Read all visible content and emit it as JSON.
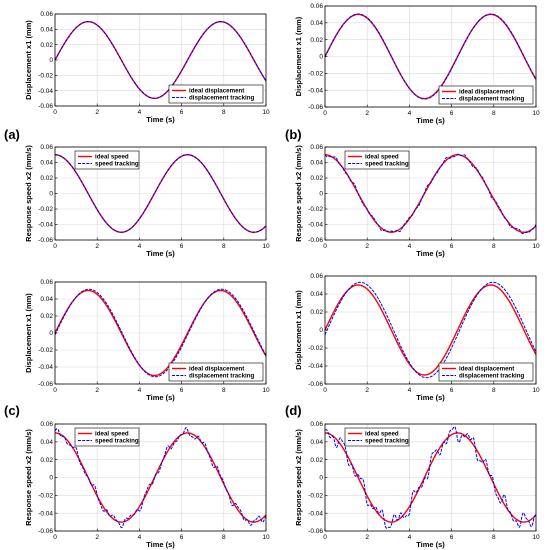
{
  "colors": {
    "ideal": "#ff0000",
    "tracking": "#0000ff",
    "grid": "#d9d9d9",
    "axis": "#000000"
  },
  "panel_labels": [
    "(a)",
    "(b)",
    "(c)",
    "(d)"
  ],
  "chart_data": [
    {
      "type": "line",
      "xlabel": "Time (s)",
      "ylabel": "Displacement x1 (mm)",
      "xlim": [
        0,
        10
      ],
      "ylim": [
        -0.06,
        0.06
      ],
      "xticks": [
        0,
        2,
        4,
        6,
        8,
        10
      ],
      "yticks": [
        -0.06,
        -0.04,
        -0.02,
        0,
        0.02,
        0.04,
        0.06
      ],
      "ytick_labels": [
        "-0.06",
        "-0.04",
        "-0.02",
        "0",
        "0.02",
        "0.04",
        "0.06"
      ],
      "grid": true,
      "legend_position": "bottom-right",
      "series": [
        {
          "name": "ideal displacement",
          "color": "#ff0000",
          "style": "solid",
          "model": {
            "amplitude": 0.05,
            "omega": 1,
            "phase": 0,
            "func": "sin"
          }
        },
        {
          "name": "displacement tracking",
          "color": "#0000ff",
          "style": "dashed",
          "model": {
            "amplitude": 0.05,
            "omega": 1,
            "phase": 0,
            "func": "sin"
          }
        }
      ]
    },
    {
      "type": "line",
      "xlabel": "Time (s)",
      "ylabel": "Displacement x1 (mm)",
      "xlim": [
        0,
        10
      ],
      "ylim": [
        -0.06,
        0.06
      ],
      "xticks": [
        0,
        2,
        4,
        6,
        8,
        10
      ],
      "yticks": [
        -0.06,
        -0.04,
        -0.02,
        0,
        0.02,
        0.04,
        0.06
      ],
      "ytick_labels": [
        "-0.06",
        "-0.04",
        "-0.02",
        "0",
        "0.02",
        "0.04",
        "0.06"
      ],
      "grid": true,
      "legend_position": "bottom-right",
      "series": [
        {
          "name": "ideal displacement",
          "color": "#ff0000",
          "style": "solid",
          "model": {
            "amplitude": 0.05,
            "omega": 1,
            "phase": 0,
            "func": "sin"
          }
        },
        {
          "name": "displacement tracking",
          "color": "#0000ff",
          "style": "dashed",
          "model": {
            "amplitude": 0.0505,
            "omega": 1,
            "phase": 0.01,
            "func": "sin"
          }
        }
      ]
    },
    {
      "type": "line",
      "xlabel": "Time (s)",
      "ylabel": "Response speed x2 (mm/s)",
      "xlim": [
        0,
        10
      ],
      "ylim": [
        -0.06,
        0.06
      ],
      "xticks": [
        0,
        2,
        4,
        6,
        8,
        10
      ],
      "yticks": [
        -0.06,
        -0.04,
        -0.02,
        0,
        0.02,
        0.04,
        0.06
      ],
      "ytick_labels": [
        "-0.06",
        "-0.04",
        "-0.02",
        "0",
        "0.02",
        "0.04",
        "0.06"
      ],
      "grid": true,
      "legend_position": "top-left",
      "series": [
        {
          "name": "ideal speed",
          "color": "#ff0000",
          "style": "solid",
          "model": {
            "amplitude": 0.05,
            "omega": 1,
            "phase": 0,
            "func": "cos"
          }
        },
        {
          "name": "speed tracking",
          "color": "#0000ff",
          "style": "dashed",
          "model": {
            "amplitude": 0.05,
            "omega": 1,
            "phase": 0,
            "func": "cos"
          }
        }
      ]
    },
    {
      "type": "line",
      "xlabel": "Time (s)",
      "ylabel": "Response speed x2 (mm/s)",
      "xlim": [
        0,
        10
      ],
      "ylim": [
        -0.06,
        0.06
      ],
      "xticks": [
        0,
        2,
        4,
        6,
        8,
        10
      ],
      "yticks": [
        -0.06,
        -0.04,
        -0.02,
        0,
        0.02,
        0.04,
        0.06
      ],
      "ytick_labels": [
        "-0.06",
        "-0.04",
        "-0.02",
        "0",
        "0.02",
        "0.04",
        "0.06"
      ],
      "grid": true,
      "legend_position": "top-left",
      "series": [
        {
          "name": "ideal speed",
          "color": "#ff0000",
          "style": "solid",
          "model": {
            "amplitude": 0.05,
            "omega": 1,
            "phase": 0,
            "func": "cos"
          }
        },
        {
          "name": "speed tracking",
          "color": "#0000ff",
          "style": "dashed",
          "model": {
            "amplitude": 0.05,
            "omega": 1,
            "phase": 0,
            "func": "cos",
            "noise": 0.003
          }
        }
      ]
    },
    {
      "type": "line",
      "xlabel": "Time (s)",
      "ylabel": "Displacement x1 (mm)",
      "xlim": [
        0,
        10
      ],
      "ylim": [
        -0.06,
        0.06
      ],
      "xticks": [
        0,
        2,
        4,
        6,
        8,
        10
      ],
      "yticks": [
        -0.06,
        -0.04,
        -0.02,
        0,
        0.02,
        0.04,
        0.06
      ],
      "ytick_labels": [
        "-0.06",
        "-0.04",
        "-0.02",
        "0",
        "0.02",
        "0.04",
        "0.06"
      ],
      "grid": true,
      "legend_position": "bottom-right",
      "series": [
        {
          "name": "ideal displacement",
          "color": "#ff0000",
          "style": "solid",
          "model": {
            "amplitude": 0.05,
            "omega": 1,
            "phase": 0,
            "func": "sin"
          }
        },
        {
          "name": "displacement tracking",
          "color": "#0000ff",
          "style": "dashed",
          "model": {
            "amplitude": 0.0515,
            "omega": 1,
            "phase": 0.04,
            "func": "sin"
          }
        }
      ]
    },
    {
      "type": "line",
      "xlabel": "Time (s)",
      "ylabel": "Displacement x1 (mm)",
      "xlim": [
        0,
        10
      ],
      "ylim": [
        -0.06,
        0.06
      ],
      "xticks": [
        0,
        2,
        4,
        6,
        8,
        10
      ],
      "yticks": [
        -0.06,
        -0.04,
        -0.02,
        0,
        0.02,
        0.04,
        0.06
      ],
      "ytick_labels": [
        "-0.06",
        "-0.04",
        "-0.02",
        "0",
        "0.02",
        "0.04",
        "0.06"
      ],
      "grid": true,
      "legend_position": "bottom-right",
      "series": [
        {
          "name": "ideal displacement",
          "color": "#ff0000",
          "style": "solid",
          "model": {
            "amplitude": 0.05,
            "omega": 1,
            "phase": 0,
            "func": "sin"
          }
        },
        {
          "name": "displacement tracking",
          "color": "#0000ff",
          "style": "dashed",
          "model": {
            "amplitude": 0.053,
            "omega": 1,
            "phase": 0.1,
            "func": "sin"
          }
        }
      ]
    },
    {
      "type": "line",
      "xlabel": "Time (s)",
      "ylabel": "Response speed x2 (mm/s)",
      "xlim": [
        0,
        10
      ],
      "ylim": [
        -0.06,
        0.06
      ],
      "xticks": [
        0,
        2,
        4,
        6,
        8,
        10
      ],
      "yticks": [
        -0.06,
        -0.04,
        -0.02,
        0,
        0.02,
        0.04,
        0.06
      ],
      "ytick_labels": [
        "-0.06",
        "-0.04",
        "-0.02",
        "0",
        "0.02",
        "0.04",
        "0.06"
      ],
      "grid": true,
      "legend_position": "top-left",
      "series": [
        {
          "name": "ideal speed",
          "color": "#ff0000",
          "style": "solid",
          "model": {
            "amplitude": 0.05,
            "omega": 1,
            "phase": 0,
            "func": "cos"
          }
        },
        {
          "name": "speed tracking",
          "color": "#0000ff",
          "style": "dashed",
          "model": {
            "amplitude": 0.05,
            "omega": 1,
            "phase": 0,
            "func": "cos",
            "noise": 0.006
          }
        }
      ]
    },
    {
      "type": "line",
      "xlabel": "Time (s)",
      "ylabel": "Response speed x2 (mm/s)",
      "xlim": [
        0,
        10
      ],
      "ylim": [
        -0.06,
        0.06
      ],
      "xticks": [
        0,
        2,
        4,
        6,
        8,
        10
      ],
      "yticks": [
        -0.06,
        -0.04,
        -0.02,
        0,
        0.02,
        0.04,
        0.06
      ],
      "ytick_labels": [
        "-0.06",
        "-0.04",
        "-0.02",
        "0",
        "0.02",
        "0.04",
        "0.06"
      ],
      "grid": true,
      "legend_position": "top-left",
      "series": [
        {
          "name": "ideal speed",
          "color": "#ff0000",
          "style": "solid",
          "model": {
            "amplitude": 0.05,
            "omega": 1,
            "phase": 0,
            "func": "cos"
          }
        },
        {
          "name": "speed tracking",
          "color": "#0000ff",
          "style": "dashed",
          "model": {
            "amplitude": 0.05,
            "omega": 1,
            "phase": 0,
            "func": "cos",
            "noise": 0.011
          }
        }
      ]
    }
  ]
}
